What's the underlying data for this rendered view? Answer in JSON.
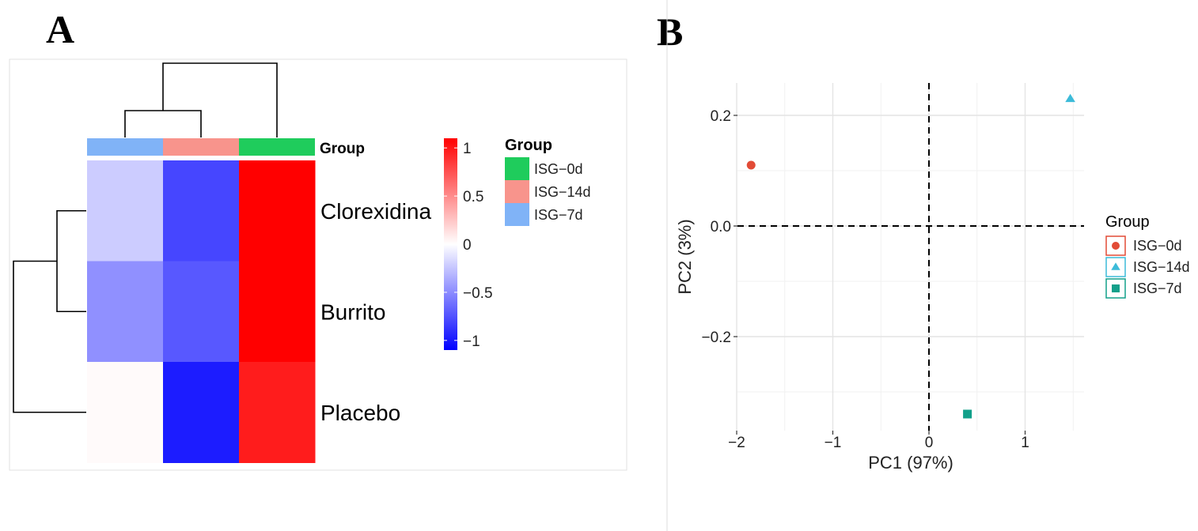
{
  "panels": {
    "a_label": "A",
    "b_label": "B"
  },
  "chart_data": [
    {
      "type": "heatmap",
      "columns": [
        "ISG-7d",
        "ISG-14d",
        "ISG-0d"
      ],
      "rows": [
        "Clorexidina",
        "Burrito",
        "Placebo"
      ],
      "values": [
        [
          -0.22,
          -0.8,
          1.1
        ],
        [
          -0.48,
          -0.72,
          1.1
        ],
        [
          0.02,
          -0.98,
          0.98
        ]
      ],
      "annotation": {
        "label": "Group",
        "colors": {
          "ISG-0d": "#1fcc5c",
          "ISG-14d": "#f8948c",
          "ISG-7d": "#80b3f7"
        }
      },
      "colorbar": {
        "ticks": [
          "1",
          "0.5",
          "0",
          "−0.5",
          "−1"
        ],
        "tick_values": [
          1,
          0.5,
          0,
          -0.5,
          -1
        ],
        "range": [
          -1.1,
          1.1
        ],
        "low_color": "#0000ff",
        "mid_color": "#ffffff",
        "high_color": "#ff0000"
      },
      "legend": {
        "title": "Group",
        "entries": [
          "ISG−0d",
          "ISG−14d",
          "ISG−7d"
        ],
        "colors": [
          "#1fcc5c",
          "#f8948c",
          "#80b3f7"
        ]
      },
      "dendrogram": {
        "columns": "(ISG-7d, ISG-14d), ISG-0d",
        "rows": "((Clorexidina, Burrito), Placebo)"
      }
    },
    {
      "type": "scatter",
      "xlabel": "PC1 (97%)",
      "ylabel": "PC2 (3%)",
      "xlim": [
        -2.05,
        1.6
      ],
      "ylim": [
        -0.37,
        0.25
      ],
      "x_ticks": [
        -2,
        -1,
        0,
        1
      ],
      "x_tick_labels": [
        "−2",
        "−1",
        "0",
        "1"
      ],
      "y_ticks": [
        0.2,
        0.0,
        -0.2
      ],
      "y_tick_labels": [
        "0.2",
        "0.0",
        "−0.2"
      ],
      "grid": true,
      "reference_lines": {
        "x": 0,
        "y": 0,
        "style": "dashed"
      },
      "legend_position": "right",
      "series": [
        {
          "name": "ISG−0d",
          "x": -1.85,
          "y": 0.11,
          "color": "#e24b36",
          "shape": "circle"
        },
        {
          "name": "ISG−14d",
          "x": 1.47,
          "y": 0.23,
          "color": "#3cbbd9",
          "shape": "triangle"
        },
        {
          "name": "ISG−7d",
          "x": 0.4,
          "y": -0.34,
          "color": "#12a08a",
          "shape": "square"
        }
      ],
      "legend": {
        "title": "Group"
      }
    }
  ]
}
